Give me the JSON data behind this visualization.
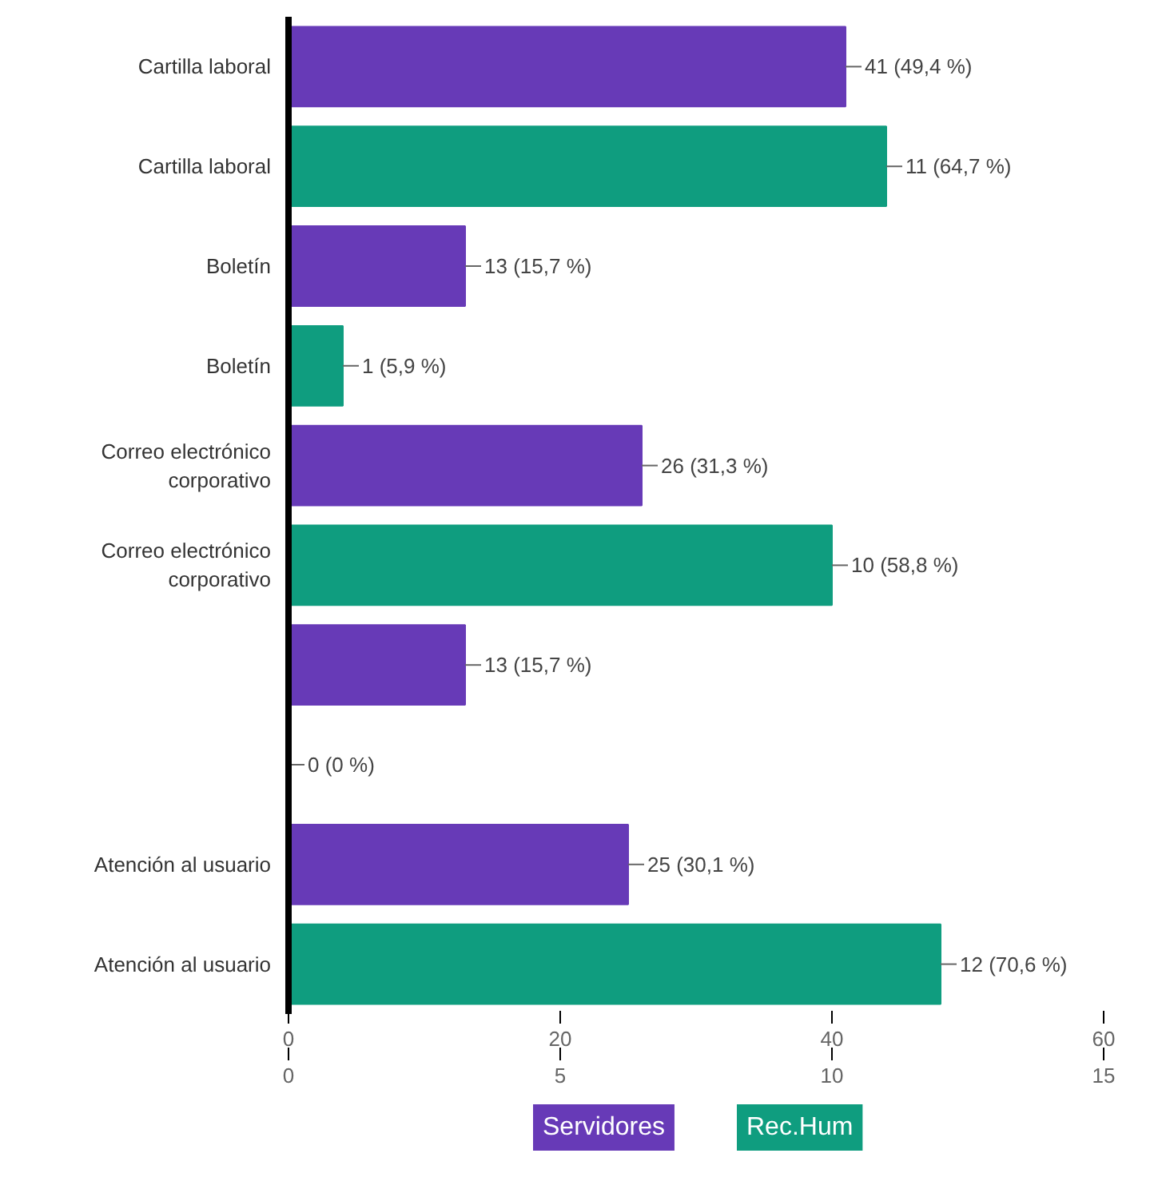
{
  "chart_data": {
    "type": "bar",
    "orientation": "horizontal",
    "categories": [
      "Cartilla laboral",
      "Cartilla laboral",
      "Boletín",
      "Boletín",
      "Correo electrónico corporativo",
      "Correo electrónico corporativo",
      null,
      null,
      "Atención al usuario",
      "Atención al usuario"
    ],
    "series": [
      {
        "name": "Servidores",
        "color": "#673ab7",
        "values": [
          41,
          null,
          13,
          null,
          26,
          null,
          13,
          null,
          25,
          null
        ],
        "value_labels": [
          "41 (49,4 %)",
          null,
          "13 (15,7 %)",
          null,
          "26 (31,3 %)",
          null,
          "13 (15,7 %)",
          null,
          "25 (30,1 %)",
          null
        ]
      },
      {
        "name": "Rec.Hum",
        "color": "#0f9d7f",
        "axis": "x2",
        "values": [
          null,
          11,
          null,
          1,
          null,
          10,
          null,
          0,
          null,
          12
        ],
        "value_labels": [
          null,
          "11 (64,7 %)",
          null,
          "1 (5,9 %)",
          null,
          "10 (58,8 %)",
          null,
          "0 (0 %)",
          null,
          "12 (70,6 %)"
        ]
      }
    ],
    "xlim": [
      0,
      60
    ],
    "xticks": [
      0,
      20,
      40,
      60
    ],
    "x2lim": [
      0,
      15
    ],
    "x2ticks": [
      0,
      5,
      10,
      15
    ],
    "legend": "bottom",
    "grid": false
  }
}
